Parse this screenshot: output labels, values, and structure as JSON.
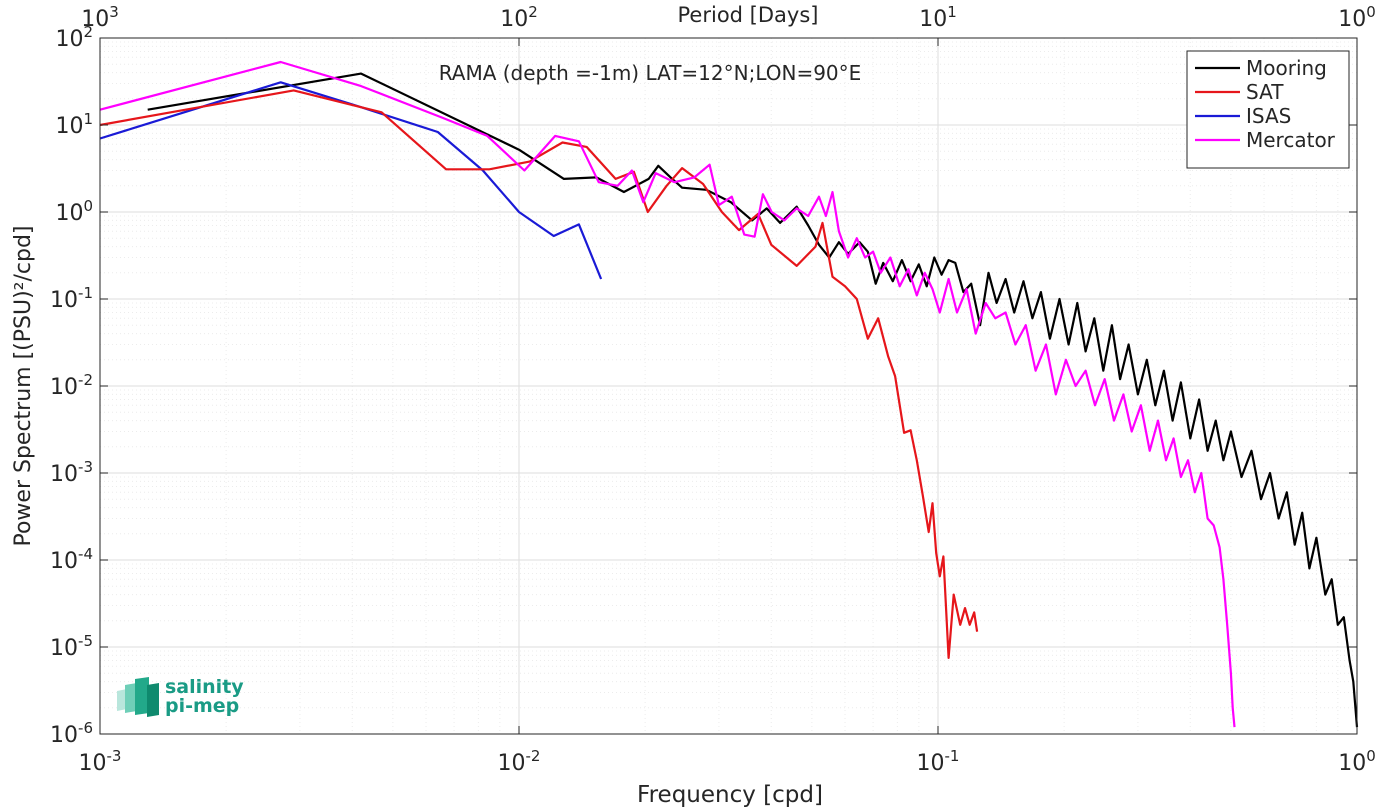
{
  "chart_data": {
    "type": "line",
    "title": "RAMA (depth =-1m) LAT=12°N;LON=90°E",
    "xlabel": "Frequency [cpd]",
    "ylabel": "Power Spectrum [(PSU)²/cpd]",
    "top_xlabel": "Period [Days]",
    "xscale": "log",
    "yscale": "log",
    "xlim": [
      0.001,
      1
    ],
    "ylim": [
      1e-06,
      100
    ],
    "grid": true,
    "legend_position": "top-right",
    "x_ticks": [
      {
        "value": 0.001,
        "base": "10",
        "exp": "-3"
      },
      {
        "value": 0.01,
        "base": "10",
        "exp": "-2"
      },
      {
        "value": 0.1,
        "base": "10",
        "exp": "-1"
      },
      {
        "value": 1,
        "base": "10",
        "exp": "0"
      }
    ],
    "top_ticks": [
      {
        "value": 0.001,
        "base": "10",
        "exp": "3"
      },
      {
        "value": 0.01,
        "base": "10",
        "exp": "2"
      },
      {
        "value": 0.1,
        "base": "10",
        "exp": "1"
      },
      {
        "value": 1,
        "base": "10",
        "exp": "0"
      }
    ],
    "y_ticks": [
      {
        "value": 100,
        "base": "10",
        "exp": "2"
      },
      {
        "value": 10,
        "base": "10",
        "exp": "1"
      },
      {
        "value": 1,
        "base": "10",
        "exp": "0"
      },
      {
        "value": 0.1,
        "base": "10",
        "exp": "-1"
      },
      {
        "value": 0.01,
        "base": "10",
        "exp": "-2"
      },
      {
        "value": 0.001,
        "base": "10",
        "exp": "-3"
      },
      {
        "value": 0.0001,
        "base": "10",
        "exp": "-4"
      },
      {
        "value": 1e-05,
        "base": "10",
        "exp": "-5"
      },
      {
        "value": 1e-06,
        "base": "10",
        "exp": "-6"
      }
    ],
    "series": [
      {
        "name": "Mooring",
        "color": "#000000",
        "points": [
          [
            0.0013,
            15
          ],
          [
            0.0042,
            39
          ],
          [
            0.01,
            5.2
          ],
          [
            0.0128,
            2.4
          ],
          [
            0.0153,
            2.5
          ],
          [
            0.0178,
            1.7
          ],
          [
            0.0204,
            2.4
          ],
          [
            0.0215,
            3.4
          ],
          [
            0.023,
            2.5
          ],
          [
            0.0245,
            1.9
          ],
          [
            0.028,
            1.8
          ],
          [
            0.032,
            1.3
          ],
          [
            0.036,
            0.8
          ],
          [
            0.039,
            1.1
          ],
          [
            0.042,
            0.75
          ],
          [
            0.046,
            1.15
          ],
          [
            0.049,
            0.7
          ],
          [
            0.052,
            0.42
          ],
          [
            0.055,
            0.3
          ],
          [
            0.058,
            0.45
          ],
          [
            0.061,
            0.33
          ],
          [
            0.065,
            0.45
          ],
          [
            0.068,
            0.35
          ],
          [
            0.071,
            0.15
          ],
          [
            0.074,
            0.26
          ],
          [
            0.078,
            0.16
          ],
          [
            0.082,
            0.28
          ],
          [
            0.086,
            0.16
          ],
          [
            0.09,
            0.25
          ],
          [
            0.094,
            0.14
          ],
          [
            0.098,
            0.3
          ],
          [
            0.102,
            0.19
          ],
          [
            0.106,
            0.28
          ],
          [
            0.11,
            0.26
          ],
          [
            0.115,
            0.12
          ],
          [
            0.12,
            0.15
          ],
          [
            0.126,
            0.05
          ],
          [
            0.132,
            0.2
          ],
          [
            0.138,
            0.09
          ],
          [
            0.145,
            0.17
          ],
          [
            0.152,
            0.07
          ],
          [
            0.16,
            0.16
          ],
          [
            0.168,
            0.06
          ],
          [
            0.176,
            0.12
          ],
          [
            0.185,
            0.035
          ],
          [
            0.195,
            0.1
          ],
          [
            0.205,
            0.03
          ],
          [
            0.215,
            0.09
          ],
          [
            0.225,
            0.025
          ],
          [
            0.236,
            0.06
          ],
          [
            0.248,
            0.015
          ],
          [
            0.26,
            0.05
          ],
          [
            0.272,
            0.012
          ],
          [
            0.285,
            0.03
          ],
          [
            0.3,
            0.008
          ],
          [
            0.315,
            0.02
          ],
          [
            0.33,
            0.006
          ],
          [
            0.346,
            0.015
          ],
          [
            0.363,
            0.004
          ],
          [
            0.38,
            0.011
          ],
          [
            0.4,
            0.0025
          ],
          [
            0.42,
            0.007
          ],
          [
            0.44,
            0.0018
          ],
          [
            0.46,
            0.004
          ],
          [
            0.48,
            0.0014
          ],
          [
            0.5,
            0.003
          ],
          [
            0.53,
            0.0009
          ],
          [
            0.56,
            0.0018
          ],
          [
            0.59,
            0.0005
          ],
          [
            0.62,
            0.001
          ],
          [
            0.65,
            0.0003
          ],
          [
            0.68,
            0.0006
          ],
          [
            0.71,
            0.00015
          ],
          [
            0.74,
            0.00035
          ],
          [
            0.77,
            8e-05
          ],
          [
            0.8,
            0.00018
          ],
          [
            0.84,
            4e-05
          ],
          [
            0.87,
            6e-05
          ],
          [
            0.9,
            1.8e-05
          ],
          [
            0.93,
            2.2e-05
          ],
          [
            0.96,
            7e-06
          ],
          [
            0.98,
            4e-06
          ],
          [
            1.0,
            1.2e-06
          ]
        ]
      },
      {
        "name": "SAT",
        "color": "#e6161b",
        "points": [
          [
            0.001,
            10
          ],
          [
            0.0029,
            25
          ],
          [
            0.0047,
            14
          ],
          [
            0.0067,
            3.1
          ],
          [
            0.0085,
            3.1
          ],
          [
            0.0106,
            3.8
          ],
          [
            0.0127,
            6.3
          ],
          [
            0.0145,
            5.6
          ],
          [
            0.017,
            2.4
          ],
          [
            0.0188,
            2.9
          ],
          [
            0.0203,
            1.0
          ],
          [
            0.0225,
            2.0
          ],
          [
            0.0245,
            3.2
          ],
          [
            0.0275,
            2.1
          ],
          [
            0.0305,
            1.0
          ],
          [
            0.0335,
            0.62
          ],
          [
            0.0372,
            0.95
          ],
          [
            0.04,
            0.42
          ],
          [
            0.046,
            0.24
          ],
          [
            0.051,
            0.4
          ],
          [
            0.053,
            0.75
          ],
          [
            0.056,
            0.18
          ],
          [
            0.06,
            0.14
          ],
          [
            0.064,
            0.1
          ],
          [
            0.068,
            0.035
          ],
          [
            0.072,
            0.06
          ],
          [
            0.076,
            0.022
          ],
          [
            0.079,
            0.013
          ],
          [
            0.083,
            0.0029
          ],
          [
            0.086,
            0.0031
          ],
          [
            0.089,
            0.0014
          ],
          [
            0.092,
            0.00055
          ],
          [
            0.095,
            0.00021
          ],
          [
            0.097,
            0.00045
          ],
          [
            0.099,
            0.00012
          ],
          [
            0.101,
            6.5e-05
          ],
          [
            0.103,
            0.00011
          ],
          [
            0.106,
            7.5e-06
          ],
          [
            0.109,
            4e-05
          ],
          [
            0.113,
            1.8e-05
          ],
          [
            0.116,
            2.8e-05
          ],
          [
            0.119,
            1.8e-05
          ],
          [
            0.122,
            2.5e-05
          ],
          [
            0.124,
            1.5e-05
          ]
        ]
      },
      {
        "name": "ISAS",
        "color": "#1a1ad6",
        "points": [
          [
            0.001,
            7
          ],
          [
            0.0027,
            31
          ],
          [
            0.0042,
            16
          ],
          [
            0.0064,
            8.3
          ],
          [
            0.0082,
            3.0
          ],
          [
            0.01,
            1.0
          ],
          [
            0.0121,
            0.53
          ],
          [
            0.0139,
            0.72
          ],
          [
            0.0157,
            0.17
          ]
        ]
      },
      {
        "name": "Mercator",
        "color": "#ff00ff",
        "points": [
          [
            0.001,
            15
          ],
          [
            0.0027,
            53
          ],
          [
            0.0042,
            28
          ],
          [
            0.0066,
            12
          ],
          [
            0.0084,
            7.5
          ],
          [
            0.0103,
            3.0
          ],
          [
            0.0122,
            7.5
          ],
          [
            0.0139,
            6.5
          ],
          [
            0.0155,
            2.2
          ],
          [
            0.0172,
            2.0
          ],
          [
            0.0186,
            3.0
          ],
          [
            0.0198,
            1.3
          ],
          [
            0.0212,
            2.8
          ],
          [
            0.0235,
            2.2
          ],
          [
            0.0262,
            2.5
          ],
          [
            0.0285,
            3.5
          ],
          [
            0.03,
            1.2
          ],
          [
            0.0322,
            1.5
          ],
          [
            0.0345,
            0.55
          ],
          [
            0.0365,
            0.52
          ],
          [
            0.0382,
            1.6
          ],
          [
            0.0401,
            1.0
          ],
          [
            0.043,
            0.8
          ],
          [
            0.046,
            1.1
          ],
          [
            0.049,
            0.9
          ],
          [
            0.052,
            1.5
          ],
          [
            0.054,
            0.9
          ],
          [
            0.056,
            1.7
          ],
          [
            0.058,
            0.6
          ],
          [
            0.061,
            0.3
          ],
          [
            0.064,
            0.5
          ],
          [
            0.067,
            0.3
          ],
          [
            0.07,
            0.35
          ],
          [
            0.073,
            0.2
          ],
          [
            0.077,
            0.3
          ],
          [
            0.081,
            0.14
          ],
          [
            0.085,
            0.22
          ],
          [
            0.089,
            0.11
          ],
          [
            0.093,
            0.2
          ],
          [
            0.097,
            0.13
          ],
          [
            0.101,
            0.07
          ],
          [
            0.106,
            0.17
          ],
          [
            0.111,
            0.07
          ],
          [
            0.117,
            0.13
          ],
          [
            0.123,
            0.04
          ],
          [
            0.13,
            0.09
          ],
          [
            0.137,
            0.06
          ],
          [
            0.145,
            0.07
          ],
          [
            0.153,
            0.03
          ],
          [
            0.162,
            0.05
          ],
          [
            0.171,
            0.015
          ],
          [
            0.181,
            0.03
          ],
          [
            0.191,
            0.008
          ],
          [
            0.202,
            0.02
          ],
          [
            0.213,
            0.01
          ],
          [
            0.225,
            0.015
          ],
          [
            0.237,
            0.006
          ],
          [
            0.25,
            0.012
          ],
          [
            0.263,
            0.004
          ],
          [
            0.277,
            0.008
          ],
          [
            0.29,
            0.003
          ],
          [
            0.305,
            0.006
          ],
          [
            0.32,
            0.0018
          ],
          [
            0.335,
            0.004
          ],
          [
            0.35,
            0.0014
          ],
          [
            0.365,
            0.0025
          ],
          [
            0.38,
            0.0009
          ],
          [
            0.395,
            0.0014
          ],
          [
            0.41,
            0.0006
          ],
          [
            0.425,
            0.001
          ],
          [
            0.44,
            0.0003
          ],
          [
            0.455,
            0.00025
          ],
          [
            0.47,
            0.00014
          ],
          [
            0.48,
            6e-05
          ],
          [
            0.49,
            1.8e-05
          ],
          [
            0.5,
            5e-06
          ],
          [
            0.505,
            2e-06
          ],
          [
            0.51,
            1.2e-06
          ]
        ]
      }
    ]
  },
  "logo": {
    "line1": "salinity",
    "line2": "pi-mep"
  }
}
